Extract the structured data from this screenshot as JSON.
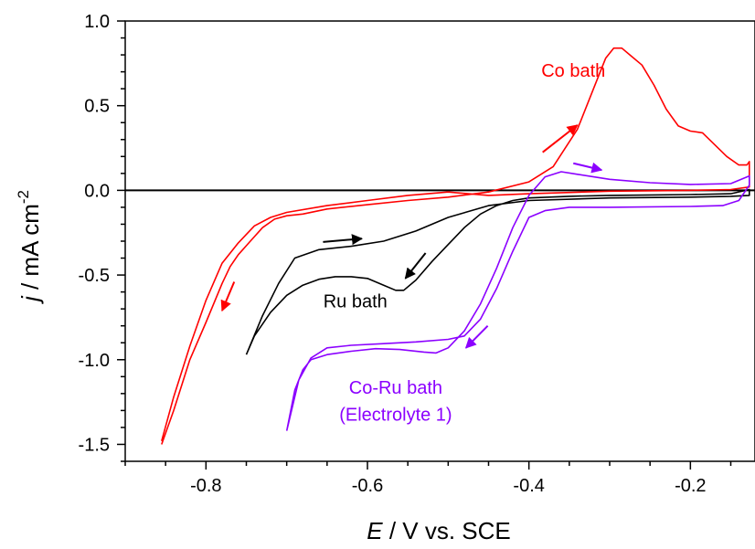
{
  "chart_data": {
    "type": "line",
    "xlabel": {
      "italic": "E",
      "rest": " / V vs. SCE"
    },
    "ylabel": {
      "italic": "j",
      "rest": " / mA cm",
      "sup": "-2"
    },
    "xlim": [
      -0.9,
      -0.12
    ],
    "ylim": [
      -1.6,
      1.0
    ],
    "xticks": [
      -0.8,
      -0.6,
      -0.4,
      -0.2
    ],
    "xtick_labels": [
      "-0.8",
      "-0.6",
      "-0.4",
      "-0.2"
    ],
    "yticks": [
      1.0,
      0.5,
      0.0,
      -0.5,
      -1.0,
      -1.5
    ],
    "ytick_labels": [
      "1.0",
      "0.5",
      "0.0",
      "-0.5",
      "-1.0",
      "-1.5"
    ],
    "zero_line": true,
    "series": [
      {
        "name": "Co bath",
        "color": "#ff0000",
        "points": [
          [
            -0.855,
            -1.5
          ],
          [
            -0.84,
            -1.3
          ],
          [
            -0.82,
            -1.0
          ],
          [
            -0.8,
            -0.78
          ],
          [
            -0.78,
            -0.55
          ],
          [
            -0.77,
            -0.45
          ],
          [
            -0.76,
            -0.38
          ],
          [
            -0.745,
            -0.3
          ],
          [
            -0.73,
            -0.22
          ],
          [
            -0.715,
            -0.17
          ],
          [
            -0.7,
            -0.15
          ],
          [
            -0.68,
            -0.14
          ],
          [
            -0.65,
            -0.11
          ],
          [
            -0.6,
            -0.085
          ],
          [
            -0.55,
            -0.06
          ],
          [
            -0.5,
            -0.04
          ],
          [
            -0.45,
            -0.01
          ],
          [
            -0.4,
            0.05
          ],
          [
            -0.37,
            0.14
          ],
          [
            -0.34,
            0.36
          ],
          [
            -0.32,
            0.6
          ],
          [
            -0.305,
            0.78
          ],
          [
            -0.295,
            0.84
          ],
          [
            -0.285,
            0.84
          ],
          [
            -0.275,
            0.8
          ],
          [
            -0.26,
            0.74
          ],
          [
            -0.245,
            0.62
          ],
          [
            -0.23,
            0.48
          ],
          [
            -0.215,
            0.38
          ],
          [
            -0.2,
            0.35
          ],
          [
            -0.185,
            0.34
          ],
          [
            -0.17,
            0.27
          ],
          [
            -0.155,
            0.2
          ],
          [
            -0.14,
            0.15
          ],
          [
            -0.13,
            0.15
          ],
          [
            -0.127,
            0.17
          ],
          [
            -0.127,
            0.02
          ],
          [
            -0.15,
            0.005
          ],
          [
            -0.2,
            0.0
          ],
          [
            -0.3,
            -0.005
          ],
          [
            -0.4,
            -0.02
          ],
          [
            -0.45,
            -0.03
          ],
          [
            -0.5,
            -0.01
          ],
          [
            -0.55,
            -0.03
          ],
          [
            -0.6,
            -0.06
          ],
          [
            -0.65,
            -0.09
          ],
          [
            -0.7,
            -0.13
          ],
          [
            -0.72,
            -0.16
          ],
          [
            -0.74,
            -0.21
          ],
          [
            -0.76,
            -0.31
          ],
          [
            -0.78,
            -0.43
          ],
          [
            -0.8,
            -0.65
          ],
          [
            -0.82,
            -0.92
          ],
          [
            -0.84,
            -1.22
          ],
          [
            -0.855,
            -1.48
          ]
        ],
        "arrows": [
          {
            "from": [
              -0.383,
              0.225
            ],
            "to": [
              -0.34,
              0.385
            ]
          },
          {
            "from": [
              -0.765,
              -0.54
            ],
            "to": [
              -0.78,
              -0.71
            ]
          }
        ]
      },
      {
        "name": "Ru bath",
        "color": "#000000",
        "points": [
          [
            -0.75,
            -0.97
          ],
          [
            -0.74,
            -0.86
          ],
          [
            -0.72,
            -0.72
          ],
          [
            -0.7,
            -0.62
          ],
          [
            -0.68,
            -0.56
          ],
          [
            -0.66,
            -0.525
          ],
          [
            -0.64,
            -0.51
          ],
          [
            -0.62,
            -0.51
          ],
          [
            -0.6,
            -0.52
          ],
          [
            -0.58,
            -0.56
          ],
          [
            -0.565,
            -0.59
          ],
          [
            -0.555,
            -0.59
          ],
          [
            -0.54,
            -0.53
          ],
          [
            -0.52,
            -0.42
          ],
          [
            -0.5,
            -0.32
          ],
          [
            -0.48,
            -0.22
          ],
          [
            -0.46,
            -0.14
          ],
          [
            -0.44,
            -0.09
          ],
          [
            -0.42,
            -0.06
          ],
          [
            -0.4,
            -0.045
          ],
          [
            -0.35,
            -0.035
          ],
          [
            -0.3,
            -0.03
          ],
          [
            -0.2,
            -0.025
          ],
          [
            -0.15,
            -0.02
          ],
          [
            -0.127,
            0.005
          ],
          [
            -0.127,
            -0.03
          ],
          [
            -0.15,
            -0.035
          ],
          [
            -0.2,
            -0.04
          ],
          [
            -0.3,
            -0.045
          ],
          [
            -0.4,
            -0.06
          ],
          [
            -0.45,
            -0.09
          ],
          [
            -0.5,
            -0.16
          ],
          [
            -0.54,
            -0.24
          ],
          [
            -0.58,
            -0.3
          ],
          [
            -0.62,
            -0.33
          ],
          [
            -0.66,
            -0.35
          ],
          [
            -0.69,
            -0.4
          ],
          [
            -0.71,
            -0.55
          ],
          [
            -0.73,
            -0.74
          ],
          [
            -0.75,
            -0.97
          ]
        ],
        "arrows": [
          {
            "from": [
              -0.655,
              -0.305
            ],
            "to": [
              -0.607,
              -0.285
            ]
          },
          {
            "from": [
              -0.528,
              -0.37
            ],
            "to": [
              -0.553,
              -0.52
            ]
          }
        ]
      },
      {
        "name": "Co-Ru bath (Electrolyte 1)",
        "color": "#8b00ff",
        "points": [
          [
            -0.7,
            -1.42
          ],
          [
            -0.69,
            -1.18
          ],
          [
            -0.68,
            -1.06
          ],
          [
            -0.67,
            -1.0
          ],
          [
            -0.65,
            -0.97
          ],
          [
            -0.62,
            -0.95
          ],
          [
            -0.59,
            -0.935
          ],
          [
            -0.56,
            -0.94
          ],
          [
            -0.53,
            -0.955
          ],
          [
            -0.515,
            -0.96
          ],
          [
            -0.5,
            -0.93
          ],
          [
            -0.48,
            -0.83
          ],
          [
            -0.46,
            -0.67
          ],
          [
            -0.44,
            -0.46
          ],
          [
            -0.42,
            -0.22
          ],
          [
            -0.4,
            -0.03
          ],
          [
            -0.38,
            0.08
          ],
          [
            -0.36,
            0.11
          ],
          [
            -0.34,
            0.095
          ],
          [
            -0.3,
            0.065
          ],
          [
            -0.25,
            0.045
          ],
          [
            -0.2,
            0.035
          ],
          [
            -0.15,
            0.04
          ],
          [
            -0.127,
            0.085
          ],
          [
            -0.127,
            0.03
          ],
          [
            -0.14,
            -0.06
          ],
          [
            -0.16,
            -0.09
          ],
          [
            -0.2,
            -0.095
          ],
          [
            -0.3,
            -0.1
          ],
          [
            -0.35,
            -0.1
          ],
          [
            -0.38,
            -0.12
          ],
          [
            -0.4,
            -0.16
          ],
          [
            -0.42,
            -0.36
          ],
          [
            -0.44,
            -0.58
          ],
          [
            -0.46,
            -0.76
          ],
          [
            -0.48,
            -0.86
          ],
          [
            -0.5,
            -0.88
          ],
          [
            -0.54,
            -0.895
          ],
          [
            -0.58,
            -0.905
          ],
          [
            -0.62,
            -0.915
          ],
          [
            -0.65,
            -0.93
          ],
          [
            -0.67,
            -0.99
          ],
          [
            -0.685,
            -1.12
          ],
          [
            -0.7,
            -1.42
          ]
        ],
        "arrows": [
          {
            "from": [
              -0.345,
              0.16
            ],
            "to": [
              -0.31,
              0.12
            ]
          },
          {
            "from": [
              -0.451,
              -0.8
            ],
            "to": [
              -0.478,
              -0.93
            ]
          }
        ]
      }
    ],
    "labels": [
      {
        "text": "Co bath",
        "x": -0.345,
        "y": 0.67,
        "color": "#ff0000"
      },
      {
        "text": "Ru bath",
        "x": -0.615,
        "y": -0.69,
        "color": "#000000"
      },
      {
        "text": "Co-Ru bath",
        "x": -0.565,
        "y": -1.2,
        "color": "#8b00ff"
      },
      {
        "text": "(Electrolyte 1)",
        "x": -0.565,
        "y": -1.36,
        "color": "#8b00ff"
      }
    ]
  }
}
